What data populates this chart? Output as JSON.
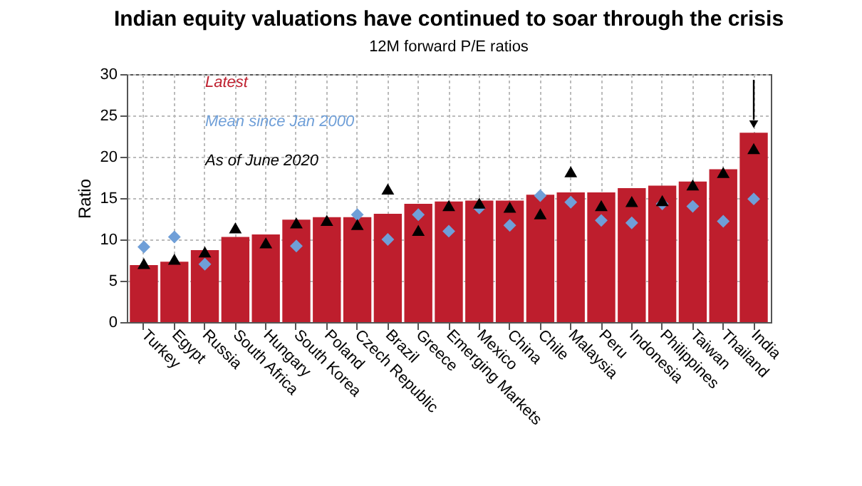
{
  "chart_data": {
    "type": "bar",
    "title": "Indian equity valuations have continued to soar through the crisis",
    "subtitle": "12M forward P/E ratios",
    "ylabel": "Ratio",
    "categories": [
      "Turkey",
      "Egypt",
      "Russia",
      "South Africa",
      "Hungary",
      "South Korea",
      "Poland",
      "Czech Republic",
      "Brazil",
      "Greece",
      "Emerging Markets",
      "Mexico",
      "China",
      "Chile",
      "Malaysia",
      "Peru",
      "Indonesia",
      "Philippines",
      "Taiwan",
      "Thailand",
      "India"
    ],
    "series": [
      {
        "name": "Latest",
        "color": "#be1e2d",
        "values": [
          6.9,
          7.3,
          8.7,
          10.3,
          10.6,
          12.4,
          12.7,
          12.7,
          13.1,
          14.3,
          14.6,
          14.7,
          14.7,
          15.4,
          15.7,
          15.7,
          16.2,
          16.5,
          17.0,
          18.5,
          22.9
        ]
      },
      {
        "name": "Mean since Jan 2000",
        "type": "scatter",
        "marker": "diamond",
        "color": "#6f9fd8",
        "values": [
          9.1,
          10.3,
          7.0,
          null,
          null,
          9.2,
          null,
          13.0,
          10.0,
          13.0,
          11.0,
          13.8,
          11.7,
          15.3,
          14.5,
          12.3,
          12.0,
          14.3,
          14.0,
          12.2,
          14.9
        ]
      },
      {
        "name": "As of June 2020",
        "type": "scatter",
        "marker": "triangle",
        "color": "#000000",
        "values": [
          7.1,
          7.6,
          8.5,
          11.4,
          9.6,
          12.0,
          12.3,
          11.8,
          16.1,
          11.1,
          14.1,
          14.4,
          13.9,
          13.1,
          18.2,
          14.1,
          14.6,
          14.7,
          16.6,
          18.1,
          21.0
        ]
      }
    ],
    "ylim": [
      0,
      30
    ],
    "yticks": [
      0,
      5,
      10,
      15,
      20,
      25,
      30
    ],
    "grid": true,
    "legend": "top left"
  }
}
